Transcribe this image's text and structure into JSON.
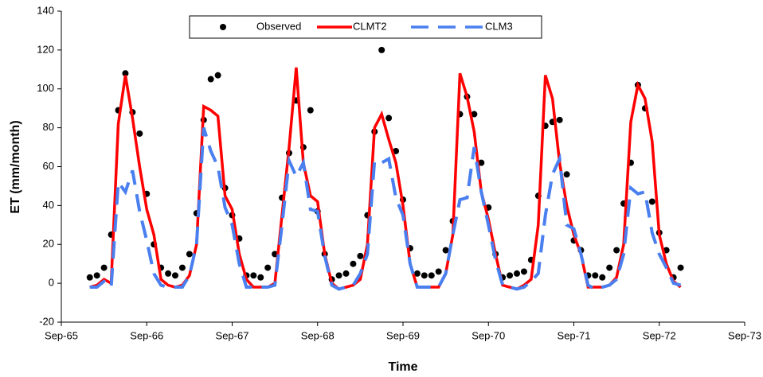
{
  "chart_data": {
    "type": "line",
    "x_label": "Time",
    "y_label": "ET (mm/month)",
    "xlim": [
      0,
      96
    ],
    "xticks": [
      {
        "value": 0,
        "label": "Sep-65"
      },
      {
        "value": 12,
        "label": "Sep-66"
      },
      {
        "value": 24,
        "label": "Sep-67"
      },
      {
        "value": 36,
        "label": "Sep-68"
      },
      {
        "value": 48,
        "label": "Sep-69"
      },
      {
        "value": 60,
        "label": "Sep-70"
      },
      {
        "value": 72,
        "label": "Sep-71"
      },
      {
        "value": 84,
        "label": "Sep-72"
      },
      {
        "value": 96,
        "label": "Sep-73"
      }
    ],
    "ylim": [
      -20,
      140
    ],
    "yticks": [
      -20,
      0,
      20,
      40,
      60,
      80,
      100,
      120,
      140
    ],
    "grid": false,
    "legend": "top",
    "x": [
      4,
      5,
      6,
      7,
      8,
      9,
      10,
      11,
      12,
      13,
      14,
      15,
      16,
      17,
      18,
      19,
      20,
      21,
      22,
      23,
      24,
      25,
      26,
      27,
      28,
      29,
      30,
      31,
      32,
      33,
      34,
      35,
      36,
      37,
      38,
      39,
      40,
      41,
      42,
      43,
      44,
      45,
      46,
      47,
      48,
      49,
      50,
      51,
      52,
      53,
      54,
      55,
      56,
      57,
      58,
      59,
      60,
      61,
      62,
      63,
      64,
      65,
      66,
      67,
      68,
      69,
      70,
      71,
      72,
      73,
      74,
      75,
      76,
      77,
      78,
      79,
      80,
      81,
      82,
      83,
      84,
      85,
      86,
      87
    ],
    "series": [
      {
        "name": "Observed",
        "color": "#000000",
        "style": "markers",
        "values": [
          3,
          4,
          8,
          25,
          89,
          108,
          88,
          77,
          46,
          20,
          8,
          5,
          4,
          8,
          15,
          36,
          84,
          105,
          107,
          49,
          35,
          23,
          4,
          4,
          3,
          8,
          15,
          44,
          67,
          94,
          70,
          89,
          37,
          15,
          2,
          4,
          5,
          10,
          14,
          35,
          78,
          120,
          85,
          68,
          43,
          18,
          5,
          4,
          4,
          6,
          17,
          32,
          87,
          96,
          87,
          62,
          39,
          15,
          3,
          4,
          5,
          6,
          12,
          45,
          81,
          83,
          84,
          56,
          22,
          17,
          4,
          4,
          3,
          8,
          17,
          41,
          62,
          102,
          90,
          42,
          26,
          17,
          3,
          8
        ]
      },
      {
        "name": "CLMT2",
        "color": "#ff0000",
        "style": "solid",
        "values": [
          -2,
          -1,
          2,
          0,
          82,
          107,
          85,
          60,
          38,
          25,
          2,
          -1,
          -2,
          -1,
          4,
          20,
          91,
          89,
          86,
          45,
          38,
          15,
          2,
          -2,
          -2,
          -2,
          0,
          35,
          70,
          111,
          62,
          45,
          42,
          15,
          0,
          -3,
          -2,
          -1,
          2,
          20,
          80,
          87,
          74,
          62,
          40,
          10,
          -2,
          -2,
          -2,
          -2,
          5,
          25,
          108,
          96,
          78,
          47,
          33,
          15,
          -1,
          -2,
          -3,
          -1,
          2,
          30,
          107,
          95,
          62,
          40,
          25,
          15,
          -2,
          -2,
          -2,
          -1,
          3,
          20,
          83,
          102,
          95,
          73,
          25,
          10,
          1,
          -2
        ]
      },
      {
        "name": "CLM3",
        "color": "#4a7ff0",
        "style": "dashed",
        "values": [
          -2,
          -2,
          1,
          -2,
          52,
          47,
          58,
          37,
          22,
          5,
          -1,
          -2,
          -2,
          -2,
          4,
          20,
          80,
          68,
          60,
          39,
          30,
          10,
          -2,
          -2,
          -2,
          -2,
          -1,
          30,
          63,
          55,
          62,
          38,
          37,
          14,
          -1,
          -3,
          -2,
          -1,
          5,
          15,
          63,
          62,
          64,
          44,
          35,
          10,
          -2,
          -2,
          -2,
          -2,
          5,
          25,
          43,
          44,
          70,
          47,
          30,
          12,
          -1,
          -2,
          -3,
          -2,
          1,
          5,
          35,
          56,
          64,
          30,
          28,
          15,
          -1,
          -3,
          -2,
          -1,
          2,
          15,
          49,
          46,
          47,
          26,
          15,
          8,
          0,
          -1
        ]
      }
    ]
  }
}
